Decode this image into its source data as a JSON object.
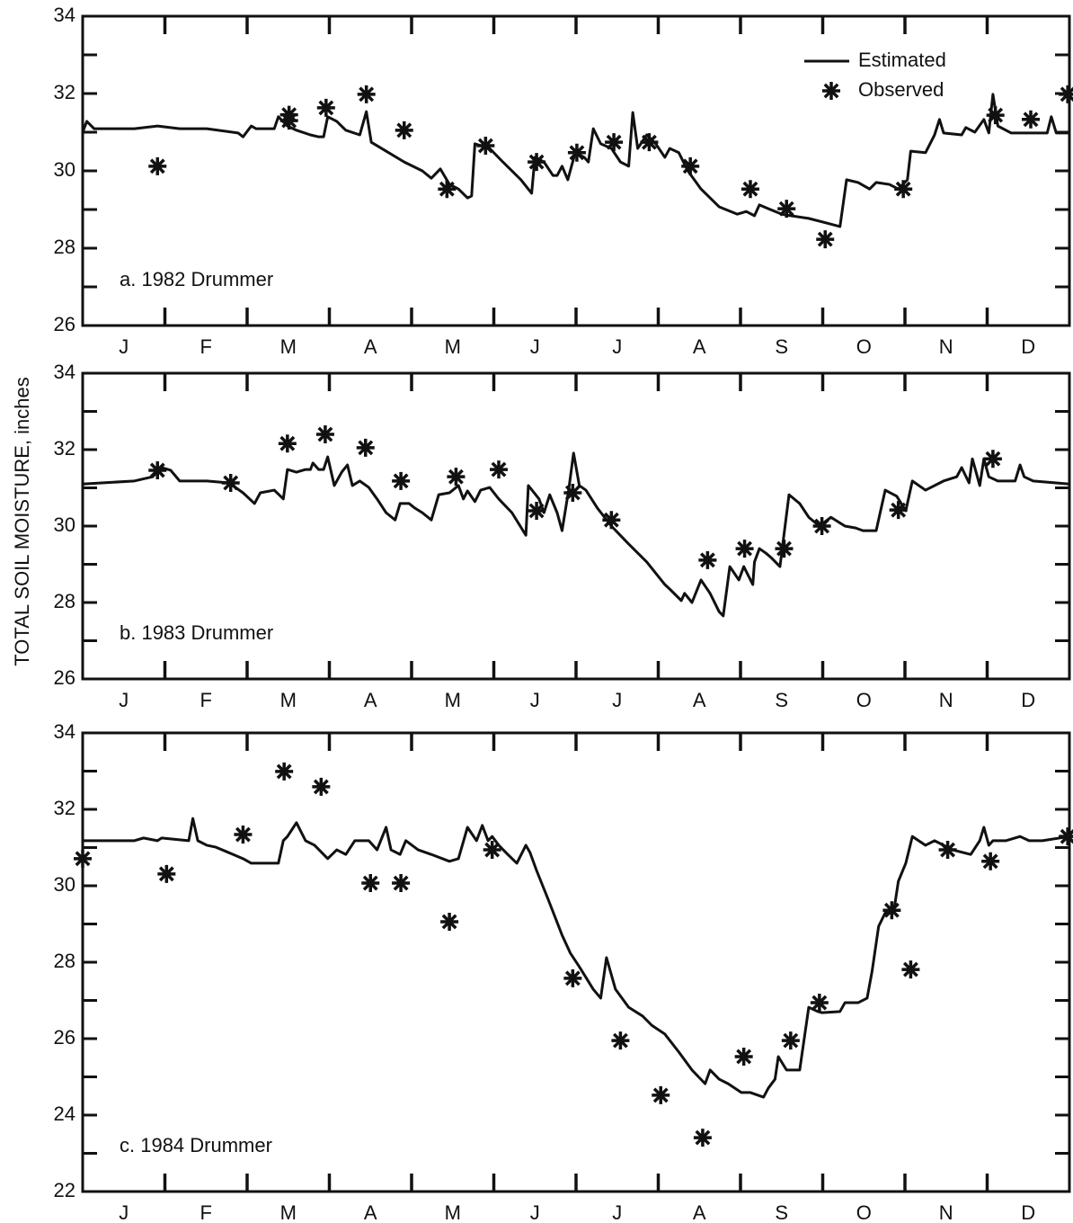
{
  "ylabel": "TOTAL SOIL MOISTURE, inches",
  "chart_data": [
    {
      "type": "line",
      "annotation": "a.  1982 Drummer",
      "legend": "upper right",
      "categories": [
        "J",
        "F",
        "M",
        "A",
        "M",
        "J",
        "J",
        "A",
        "S",
        "O",
        "N",
        "D"
      ],
      "xlim": [
        0,
        12
      ],
      "ylim": [
        26,
        34
      ],
      "yticks": [
        26,
        28,
        30,
        32,
        34
      ],
      "yminorticks": [
        27,
        29,
        31,
        33
      ],
      "series": [
        {
          "name": "Estimated",
          "type": "line",
          "color": "#111111",
          "x": [
            0,
            0.05,
            0.14,
            0.63,
            0.91,
            1.18,
            1.51,
            1.89,
            1.95,
            2.05,
            2.11,
            2.33,
            2.38,
            2.49,
            2.6,
            2.77,
            2.87,
            2.93,
            2.98,
            3.09,
            3.2,
            3.37,
            3.45,
            3.51,
            3.69,
            3.91,
            4.13,
            4.24,
            4.35,
            4.46,
            4.57,
            4.68,
            4.73,
            4.77,
            4.95,
            5.11,
            5.33,
            5.46,
            5.5,
            5.61,
            5.72,
            5.77,
            5.83,
            5.9,
            5.99,
            6.1,
            6.15,
            6.21,
            6.3,
            6.43,
            6.54,
            6.64,
            6.69,
            6.75,
            6.86,
            6.97,
            7.08,
            7.14,
            7.25,
            7.36,
            7.52,
            7.74,
            7.96,
            8.07,
            8.17,
            8.23,
            8.34,
            8.5,
            8.61,
            8.83,
            9.05,
            9.21,
            9.29,
            9.43,
            9.57,
            9.65,
            9.81,
            9.92,
            10.03,
            10.07,
            10.25,
            10.36,
            10.42,
            10.47,
            10.69,
            10.74,
            10.85,
            10.96,
            11.02,
            11.07,
            11.13,
            11.29,
            11.73,
            11.78,
            11.84,
            12.0
          ],
          "values": [
            31.0,
            31.28,
            31.09,
            31.09,
            31.16,
            31.09,
            31.09,
            30.98,
            30.88,
            31.16,
            31.09,
            31.09,
            31.4,
            31.16,
            31.05,
            30.93,
            30.88,
            30.88,
            31.4,
            31.28,
            31.05,
            30.93,
            31.53,
            30.74,
            30.51,
            30.23,
            30.0,
            29.81,
            30.05,
            29.65,
            29.53,
            29.3,
            29.35,
            30.7,
            30.58,
            30.23,
            29.77,
            29.42,
            30.35,
            30.23,
            29.88,
            29.88,
            30.12,
            29.77,
            30.47,
            30.35,
            30.23,
            31.09,
            30.7,
            30.58,
            30.23,
            30.12,
            31.51,
            30.58,
            30.93,
            30.7,
            30.35,
            30.58,
            30.47,
            30.0,
            29.53,
            29.07,
            28.88,
            28.95,
            28.84,
            29.12,
            29.02,
            28.88,
            28.84,
            28.77,
            28.65,
            28.56,
            29.77,
            29.7,
            29.53,
            29.7,
            29.65,
            29.53,
            29.77,
            30.51,
            30.47,
            30.93,
            31.33,
            30.98,
            30.93,
            31.12,
            31.0,
            31.33,
            30.98,
            31.98,
            31.16,
            30.98,
            30.98,
            31.4,
            30.98,
            30.98
          ]
        },
        {
          "name": "Observed",
          "type": "scatter",
          "color": "#111111",
          "x": [
            0.91,
            2.51,
            2.51,
            2.96,
            3.45,
            3.91,
            4.43,
            4.9,
            5.52,
            6.01,
            6.46,
            6.89,
            7.39,
            8.12,
            8.56,
            9.03,
            9.98,
            11.1,
            11.53,
            11.98
          ],
          "values": [
            30.12,
            31.45,
            31.3,
            31.63,
            31.98,
            31.05,
            29.53,
            30.65,
            30.23,
            30.47,
            30.74,
            30.74,
            30.12,
            29.53,
            29.02,
            28.23,
            29.53,
            31.44,
            31.33,
            31.98
          ]
        }
      ]
    },
    {
      "type": "line",
      "annotation": "b.  1983 Drummer",
      "categories": [
        "J",
        "F",
        "M",
        "A",
        "M",
        "J",
        "J",
        "A",
        "S",
        "O",
        "N",
        "D"
      ],
      "xlim": [
        0,
        12
      ],
      "ylim": [
        26,
        34
      ],
      "yticks": [
        26,
        28,
        30,
        32,
        34
      ],
      "yminorticks": [
        27,
        29,
        31,
        33
      ],
      "series": [
        {
          "type": "line",
          "color": "#111111",
          "x": [
            0,
            0.63,
            0.85,
            0.96,
            1.07,
            1.18,
            1.51,
            1.78,
            1.95,
            2.09,
            2.16,
            2.33,
            2.44,
            2.49,
            2.6,
            2.71,
            2.77,
            2.8,
            2.87,
            2.93,
            2.98,
            3.06,
            3.15,
            3.22,
            3.28,
            3.37,
            3.48,
            3.58,
            3.69,
            3.8,
            3.86,
            3.97,
            4.04,
            4.13,
            4.24,
            4.33,
            4.46,
            4.57,
            4.63,
            4.68,
            4.77,
            4.84,
            4.95,
            5.06,
            5.22,
            5.39,
            5.42,
            5.55,
            5.61,
            5.68,
            5.77,
            5.83,
            5.91,
            5.97,
            6.04,
            6.12,
            6.26,
            6.43,
            6.64,
            6.86,
            7.08,
            7.14,
            7.28,
            7.32,
            7.41,
            7.52,
            7.63,
            7.74,
            7.79,
            7.87,
            7.98,
            8.04,
            8.15,
            8.17,
            8.23,
            8.31,
            8.37,
            8.48,
            8.59,
            8.72,
            8.83,
            8.96,
            9.1,
            9.27,
            9.4,
            9.49,
            9.65,
            9.76,
            9.9,
            10.01,
            10.09,
            10.25,
            10.47,
            10.63,
            10.69,
            10.78,
            10.82,
            10.91,
            10.96,
            11.02,
            11.13,
            11.34,
            11.4,
            11.45,
            11.56,
            12.0
          ],
          "values": [
            31.1,
            31.18,
            31.29,
            31.53,
            31.46,
            31.18,
            31.18,
            31.13,
            30.87,
            30.59,
            30.87,
            30.94,
            30.71,
            31.48,
            31.41,
            31.48,
            31.48,
            31.65,
            31.48,
            31.48,
            31.81,
            31.06,
            31.41,
            31.6,
            31.06,
            31.18,
            31.01,
            30.71,
            30.35,
            30.16,
            30.59,
            30.59,
            30.47,
            30.35,
            30.16,
            30.82,
            30.87,
            31.06,
            30.71,
            30.92,
            30.64,
            30.94,
            31.01,
            30.71,
            30.35,
            29.76,
            31.06,
            30.71,
            30.35,
            30.82,
            30.35,
            29.88,
            30.94,
            31.91,
            31.06,
            30.94,
            30.47,
            30.0,
            29.53,
            29.06,
            28.47,
            28.35,
            28.05,
            28.24,
            28.0,
            28.59,
            28.24,
            27.76,
            27.65,
            28.94,
            28.59,
            28.94,
            28.47,
            29.06,
            29.41,
            29.29,
            29.18,
            28.94,
            30.82,
            30.59,
            30.23,
            30.0,
            30.23,
            30.0,
            29.95,
            29.88,
            29.88,
            30.94,
            30.78,
            30.4,
            31.18,
            30.94,
            31.18,
            31.29,
            31.53,
            31.13,
            31.76,
            31.06,
            31.76,
            31.29,
            31.18,
            31.18,
            31.6,
            31.29,
            31.18,
            31.1
          ]
        },
        {
          "type": "scatter",
          "color": "#111111",
          "x": [
            0.91,
            1.8,
            2.49,
            2.95,
            3.44,
            3.87,
            4.54,
            5.06,
            5.52,
            5.96,
            6.43,
            7.6,
            8.05,
            8.53,
            8.99,
            9.92,
            11.07
          ],
          "values": [
            31.46,
            31.13,
            32.16,
            32.4,
            32.05,
            31.18,
            31.29,
            31.48,
            30.4,
            30.87,
            30.16,
            29.11,
            29.41,
            29.41,
            30.0,
            30.42,
            31.76
          ]
        }
      ]
    },
    {
      "type": "line",
      "annotation": "c.  1984 Drummer",
      "categories": [
        "J",
        "F",
        "M",
        "A",
        "M",
        "J",
        "J",
        "A",
        "S",
        "O",
        "N",
        "D"
      ],
      "xlim": [
        0,
        12
      ],
      "ylim": [
        22,
        34
      ],
      "yticks": [
        22,
        24,
        26,
        28,
        30,
        32,
        34
      ],
      "yminorticks": [
        23,
        25,
        27,
        29,
        31,
        33
      ],
      "series": [
        {
          "type": "line",
          "color": "#111111",
          "x": [
            0,
            0.63,
            0.74,
            0.91,
            0.96,
            1.29,
            1.34,
            1.4,
            1.51,
            1.62,
            1.95,
            2.05,
            2.38,
            2.44,
            2.49,
            2.6,
            2.71,
            2.82,
            2.98,
            3.09,
            3.2,
            3.31,
            3.48,
            3.58,
            3.69,
            3.75,
            3.86,
            3.93,
            4.08,
            4.24,
            4.46,
            4.57,
            4.68,
            4.79,
            4.86,
            4.93,
            4.98,
            5.06,
            5.17,
            5.28,
            5.39,
            5.44,
            5.52,
            5.66,
            5.83,
            5.93,
            6.04,
            6.21,
            6.3,
            6.37,
            6.48,
            6.64,
            6.81,
            6.92,
            7.08,
            7.25,
            7.41,
            7.57,
            7.63,
            7.74,
            7.85,
            8.01,
            8.12,
            8.28,
            8.34,
            8.42,
            8.46,
            8.56,
            8.72,
            8.83,
            8.94,
            8.99,
            9.21,
            9.27,
            9.43,
            9.54,
            9.6,
            9.68,
            9.76,
            9.87,
            9.92,
            10.01,
            10.09,
            10.25,
            10.36,
            10.58,
            10.8,
            10.91,
            10.96,
            11.02,
            11.07,
            11.23,
            11.4,
            11.51,
            11.67,
            12.0
          ],
          "values": [
            31.18,
            31.18,
            31.25,
            31.18,
            31.25,
            31.18,
            31.76,
            31.18,
            31.06,
            31.01,
            30.71,
            30.59,
            30.59,
            31.18,
            31.29,
            31.65,
            31.18,
            31.06,
            30.71,
            30.94,
            30.82,
            31.18,
            31.18,
            30.94,
            31.53,
            30.94,
            30.82,
            31.18,
            30.94,
            30.82,
            30.64,
            30.71,
            31.53,
            31.18,
            31.58,
            31.18,
            31.29,
            31.06,
            30.82,
            30.59,
            31.06,
            30.87,
            30.4,
            29.65,
            28.71,
            28.24,
            27.88,
            27.29,
            27.06,
            28.12,
            27.29,
            26.82,
            26.59,
            26.35,
            26.12,
            25.65,
            25.18,
            24.82,
            25.18,
            24.94,
            24.82,
            24.59,
            24.59,
            24.47,
            24.71,
            24.94,
            25.53,
            25.18,
            25.18,
            26.82,
            26.71,
            26.68,
            26.71,
            26.94,
            26.94,
            27.06,
            27.76,
            28.94,
            29.29,
            29.41,
            30.12,
            30.59,
            31.29,
            31.06,
            31.18,
            30.94,
            30.82,
            31.18,
            31.53,
            31.06,
            31.18,
            31.18,
            31.29,
            31.18,
            31.18,
            31.29
          ]
        },
        {
          "type": "scatter",
          "color": "#111111",
          "x": [
            0,
            1.02,
            1.95,
            2.45,
            2.9,
            3.5,
            3.87,
            4.46,
            4.98,
            5.96,
            6.54,
            7.03,
            7.54,
            8.04,
            8.61,
            8.96,
            9.84,
            10.07,
            10.52,
            11.04,
            11.98
          ],
          "values": [
            30.71,
            30.31,
            31.34,
            32.99,
            32.59,
            30.07,
            30.07,
            29.06,
            30.94,
            27.58,
            25.95,
            24.52,
            23.41,
            25.53,
            25.95,
            26.94,
            29.36,
            27.81,
            30.94,
            30.64,
            31.29
          ]
        }
      ]
    }
  ]
}
